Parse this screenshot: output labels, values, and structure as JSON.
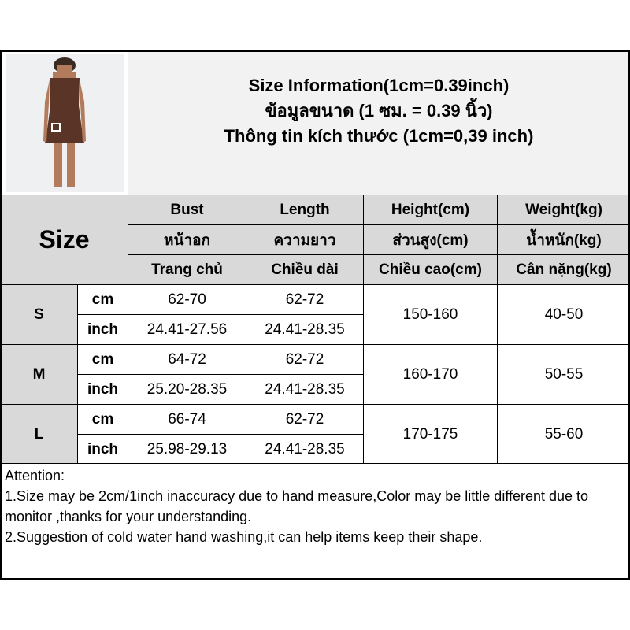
{
  "title": {
    "line1": "Size Information(1cm=0.39inch)",
    "line2": "ข้อมูลขนาด (1 ซม. = 0.39 นิ้ว)",
    "line3": "Thông tin kích thước (1cm=0,39 inch)"
  },
  "size_label": "Size",
  "headers": [
    [
      "Bust",
      "Length",
      "Height(cm)",
      "Weight(kg)"
    ],
    [
      "หน้าอก",
      "ความยาว",
      "ส่วนสูง(cm)",
      "น้ำหนัก(kg)"
    ],
    [
      "Trang chủ",
      "Chiều dài",
      "Chiều cao(cm)",
      "Cân nặng(kg)"
    ]
  ],
  "rows": [
    {
      "size": "S",
      "cm_label": "cm",
      "inch_label": "inch",
      "bust_cm": "62-70",
      "bust_inch": "24.41-27.56",
      "length_cm": "62-72",
      "length_inch": "24.41-28.35",
      "height": "150-160",
      "weight": "40-50"
    },
    {
      "size": "M",
      "cm_label": "cm",
      "inch_label": "inch",
      "bust_cm": "64-72",
      "bust_inch": "25.20-28.35",
      "length_cm": "62-72",
      "length_inch": "24.41-28.35",
      "height": "160-170",
      "weight": "50-55"
    },
    {
      "size": "L",
      "cm_label": "cm",
      "inch_label": "inch",
      "bust_cm": "66-74",
      "bust_inch": "25.98-29.13",
      "length_cm": "62-72",
      "length_inch": "24.41-28.35",
      "height": "170-175",
      "weight": "55-60"
    }
  ],
  "attention": {
    "heading": "Attention:",
    "note1": "1.Size may be 2cm/1inch inaccuracy due to hand measure,Color may be little different due to monitor ,thanks for your understanding.",
    "note2": "2.Suggestion of cold water hand washing,it can help items keep their shape."
  },
  "colors": {
    "header_bg": "#d9d9d9",
    "title_bg": "#f2f2f2",
    "dress": "#5a3426"
  }
}
